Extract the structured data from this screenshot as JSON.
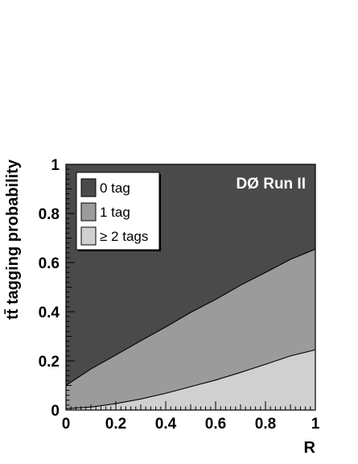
{
  "chart_data": {
    "type": "area",
    "x": [
      0,
      0.1,
      0.2,
      0.3,
      0.4,
      0.5,
      0.6,
      0.7,
      0.8,
      0.9,
      1.0
    ],
    "stack_order": [
      "≥ 2 tags",
      "1 tag",
      "0 tag"
    ],
    "series": [
      {
        "name": "≥ 2 tags",
        "values": [
          0.005,
          0.012,
          0.026,
          0.045,
          0.068,
          0.095,
          0.122,
          0.153,
          0.186,
          0.22,
          0.245
        ],
        "color": "#d0d0d0"
      },
      {
        "name": "1 tag",
        "values": [
          0.095,
          0.155,
          0.198,
          0.237,
          0.27,
          0.302,
          0.328,
          0.355,
          0.374,
          0.393,
          0.41
        ],
        "color": "#9b9b9b"
      },
      {
        "name": "0 tag",
        "values": [
          0.9,
          0.833,
          0.776,
          0.718,
          0.662,
          0.603,
          0.55,
          0.492,
          0.44,
          0.387,
          0.345
        ],
        "color": "#4a4a4a"
      }
    ],
    "boundaries": {
      "upper": [
        0.1,
        0.167,
        0.224,
        0.282,
        0.338,
        0.397,
        0.45,
        0.508,
        0.56,
        0.613,
        0.655
      ],
      "lower": [
        0.005,
        0.012,
        0.026,
        0.045,
        0.068,
        0.095,
        0.122,
        0.153,
        0.186,
        0.22,
        0.245
      ]
    },
    "xlabel": "R",
    "ylabel": "tt̄ tagging probability",
    "xlim": [
      0,
      1
    ],
    "ylim": [
      0,
      1
    ],
    "xticks": [
      "0",
      "0.2",
      "0.4",
      "0.6",
      "0.8",
      "1"
    ],
    "yticks": [
      "0",
      "0.2",
      "0.4",
      "0.6",
      "0.8",
      "1"
    ],
    "legend_placement": "top-left",
    "annotation": "DØ Run II"
  }
}
